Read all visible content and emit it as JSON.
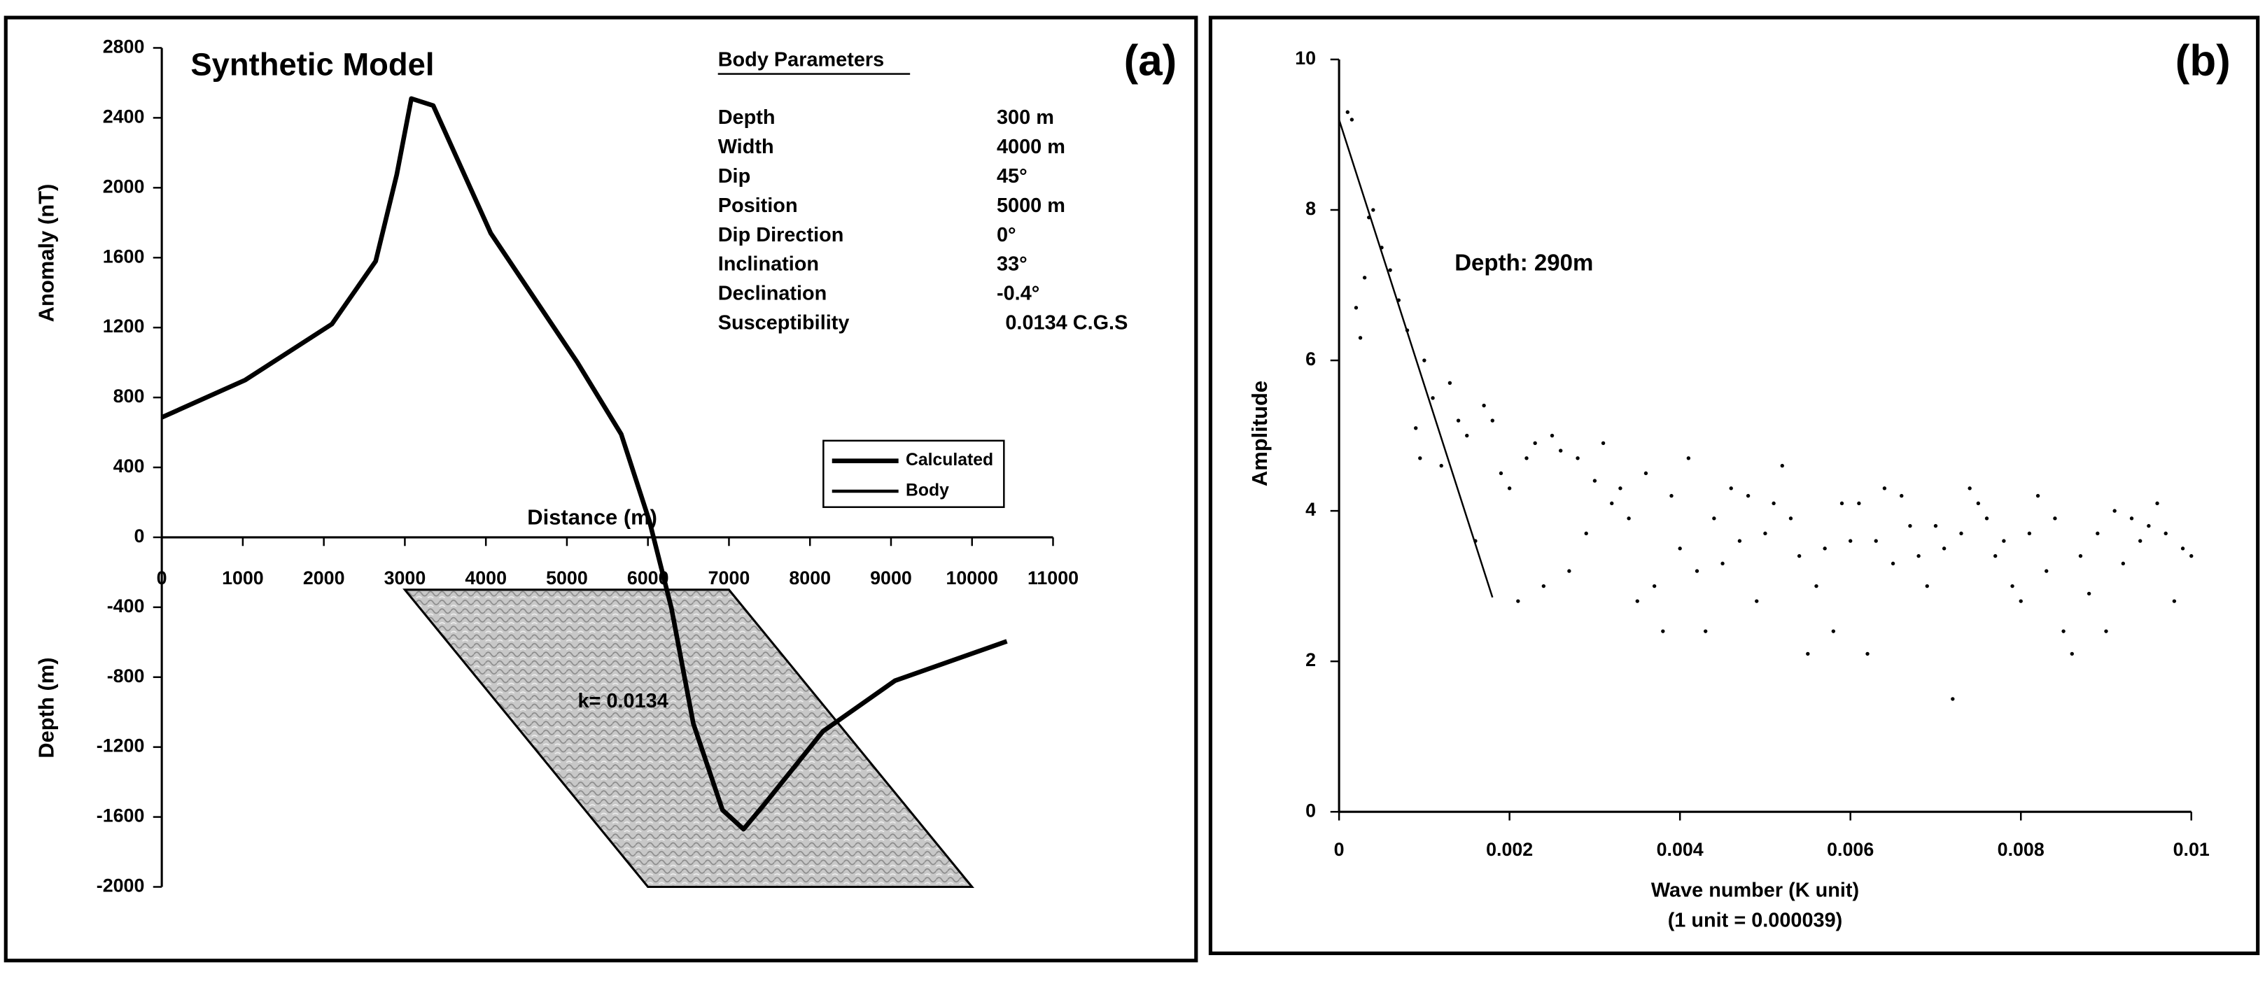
{
  "chart_data": [
    {
      "type": "line",
      "title": "Synthetic Model",
      "panel_label": "(a)",
      "xlabel": "Distance (m)",
      "ylabel_top": "Anomaly (nT)",
      "ylabel_bottom": "Depth (m)",
      "xlim": [
        0,
        11000
      ],
      "xticks": [
        0,
        1000,
        2000,
        3000,
        4000,
        5000,
        6000,
        7000,
        8000,
        9000,
        10000,
        11000
      ],
      "ylim": [
        -2000,
        2800
      ],
      "yticks": [
        -2000,
        -1600,
        -1200,
        -800,
        -400,
        0,
        400,
        800,
        1200,
        1600,
        2000,
        2400,
        2800
      ],
      "parameters_title": "Body Parameters",
      "parameters": [
        {
          "label": "Depth",
          "value": "300 m"
        },
        {
          "label": "Width",
          "value": "4000 m"
        },
        {
          "label": "Dip",
          "value": "45°"
        },
        {
          "label": "Position",
          "value": "5000 m"
        },
        {
          "label": "Dip Direction",
          "value": "0°"
        },
        {
          "label": "Inclination",
          "value": "33°"
        },
        {
          "label": "Declination",
          "value": "-0.4°"
        },
        {
          "label": "Susceptibility",
          "value": "0.0134 C.G.S"
        }
      ],
      "body_label": "k= 0.0134",
      "series": [
        {
          "name": "Calculated",
          "color": "#000000",
          "x": [
            0,
            1030,
            2100,
            2640,
            2900,
            3080,
            3350,
            4060,
            5130,
            5670,
            6020,
            6290,
            6560,
            6920,
            7180,
            7450,
            8160,
            9050,
            10430
          ],
          "values": [
            686,
            900,
            1220,
            1580,
            2075,
            2510,
            2470,
            1740,
            1000,
            590,
            90,
            -405,
            -1065,
            -1560,
            -1670,
            -1520,
            -1110,
            -820,
            -595
          ]
        },
        {
          "name": "Body",
          "color": "#000000",
          "x": [
            3000,
            7000,
            10000,
            6000
          ],
          "values": [
            -300,
            -300,
            -2000,
            -2000
          ]
        }
      ]
    },
    {
      "type": "scatter",
      "panel_label": "(b)",
      "xlabel": "Wave number (K unit)",
      "xlabel_note": "(1 unit = 0.000039)",
      "ylabel": "Amplitude",
      "annotation": "Depth: 290m",
      "xlim": [
        0,
        0.01
      ],
      "xticks": [
        0,
        0.002,
        0.004,
        0.006,
        0.008,
        0.01
      ],
      "ylim": [
        0,
        10
      ],
      "yticks": [
        0,
        2,
        4,
        6,
        8,
        10
      ],
      "color": "#000000",
      "x": [
        0.0001,
        0.00015,
        0.0002,
        0.00025,
        0.0003,
        0.00035,
        0.0004,
        0.0005,
        0.0006,
        0.0007,
        0.0008,
        0.0009,
        0.00095,
        0.001,
        0.0011,
        0.0012,
        0.0013,
        0.0014,
        0.0015,
        0.0016,
        0.0017,
        0.0018,
        0.0019,
        0.002,
        0.0021,
        0.0022,
        0.0023,
        0.0024,
        0.0025,
        0.0026,
        0.0027,
        0.0028,
        0.0029,
        0.003,
        0.0031,
        0.0032,
        0.0033,
        0.0034,
        0.0035,
        0.0036,
        0.0037,
        0.0038,
        0.0039,
        0.004,
        0.0041,
        0.0042,
        0.0043,
        0.0044,
        0.0045,
        0.0046,
        0.0047,
        0.0048,
        0.0049,
        0.005,
        0.0051,
        0.0052,
        0.0053,
        0.0054,
        0.0055,
        0.0056,
        0.0057,
        0.0058,
        0.0059,
        0.006,
        0.0061,
        0.0062,
        0.0063,
        0.0064,
        0.0065,
        0.0066,
        0.0067,
        0.0068,
        0.0069,
        0.007,
        0.0071,
        0.0072,
        0.0073,
        0.0074,
        0.0075,
        0.0076,
        0.0077,
        0.0078,
        0.0079,
        0.008,
        0.0081,
        0.0082,
        0.0083,
        0.0084,
        0.0085,
        0.0086,
        0.0087,
        0.0088,
        0.0089,
        0.009,
        0.0091,
        0.0092,
        0.0093,
        0.0094,
        0.0095,
        0.0096,
        0.0097,
        0.0098,
        0.0099,
        0.01
      ],
      "values": [
        9.3,
        9.2,
        6.7,
        6.3,
        7.1,
        7.9,
        8.0,
        7.5,
        7.2,
        6.8,
        6.4,
        5.1,
        4.7,
        6.0,
        5.5,
        4.6,
        5.7,
        5.2,
        5.0,
        3.6,
        5.4,
        5.2,
        4.5,
        4.3,
        2.8,
        4.7,
        4.9,
        3.0,
        5.0,
        4.8,
        3.2,
        4.7,
        3.7,
        4.4,
        4.9,
        4.1,
        4.3,
        3.9,
        2.8,
        4.5,
        3.0,
        2.4,
        4.2,
        3.5,
        4.7,
        3.2,
        2.4,
        3.9,
        3.3,
        4.3,
        3.6,
        4.2,
        2.8,
        3.7,
        4.1,
        4.6,
        3.9,
        3.4,
        2.1,
        3.0,
        3.5,
        2.4,
        4.1,
        3.6,
        4.1,
        2.1,
        3.6,
        4.3,
        3.3,
        4.2,
        3.8,
        3.4,
        3.0,
        3.8,
        3.5,
        1.5,
        3.7,
        4.3,
        4.1,
        3.9,
        3.4,
        3.6,
        3.0,
        2.8,
        3.7,
        4.2,
        3.2,
        3.9,
        2.4,
        2.1,
        3.4,
        2.9,
        3.7,
        2.4,
        4.0,
        3.3,
        3.9,
        3.6,
        3.8,
        4.1,
        3.7,
        2.8,
        3.5,
        3.4
      ],
      "fit_line": {
        "x": [
          0,
          0.0018
        ],
        "values": [
          9.2,
          2.85
        ]
      }
    }
  ]
}
